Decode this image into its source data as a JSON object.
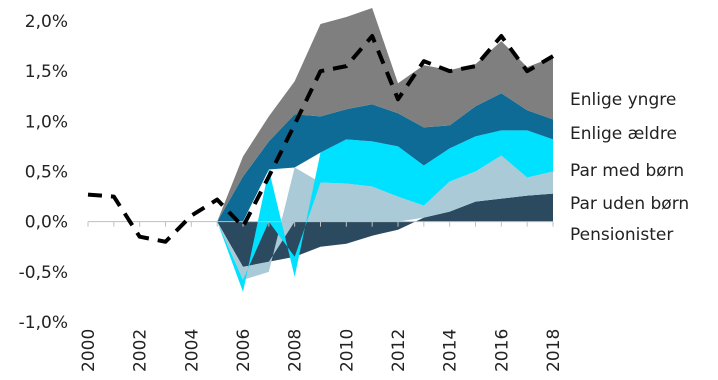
{
  "chart_data": {
    "type": "area",
    "stacked": true,
    "title": "",
    "xlabel": "",
    "ylabel": "",
    "ylim": [
      -1.0,
      2.0
    ],
    "y_ticks": [
      "-1,0%",
      "-0,5%",
      "0,0%",
      "0,5%",
      "1,0%",
      "1,5%",
      "2,0%"
    ],
    "x_ticks": [
      "2000",
      "2002",
      "2004",
      "2006",
      "2008",
      "2010",
      "2012",
      "2014",
      "2016",
      "2018"
    ],
    "grid": false,
    "legend_position": "right",
    "x": [
      2005,
      2006,
      2007,
      2008,
      2009,
      2010,
      2011,
      2012,
      2013,
      2014,
      2015,
      2016,
      2017,
      2018
    ],
    "series": [
      {
        "name": "Pensionister",
        "color": "#2b4a60",
        "values": [
          0.0,
          -0.45,
          -0.4,
          -0.35,
          -0.25,
          -0.22,
          -0.14,
          -0.08,
          0.04,
          0.1,
          0.2,
          0.23,
          0.26,
          0.28
        ]
      },
      {
        "name": "Par uden børn",
        "color": "#a9cad6",
        "values": [
          0.0,
          -0.13,
          -0.1,
          0.54,
          0.39,
          0.38,
          0.35,
          0.25,
          0.12,
          0.3,
          0.3,
          0.43,
          0.18,
          0.22
        ]
      },
      {
        "name": "Par med børn",
        "color": "#00e0ff",
        "values": [
          0.0,
          -0.12,
          0.52,
          -0.2,
          0.3,
          0.44,
          0.45,
          0.5,
          0.4,
          0.33,
          0.35,
          0.25,
          0.47,
          0.32
        ]
      },
      {
        "name": "Enlige ældre",
        "color": "#0e6b96",
        "values": [
          0.0,
          0.45,
          0.28,
          0.53,
          0.36,
          0.3,
          0.37,
          0.33,
          0.38,
          0.23,
          0.3,
          0.37,
          0.2,
          0.2
        ]
      },
      {
        "name": "Enlige yngre",
        "color": "#7f7f7f",
        "values": [
          0.0,
          0.2,
          0.25,
          0.33,
          0.92,
          0.92,
          0.96,
          0.3,
          0.62,
          0.55,
          0.42,
          0.52,
          0.43,
          0.62
        ]
      }
    ],
    "total_line": {
      "style": "dashed",
      "color": "#000000",
      "x": [
        2000,
        2001,
        2002,
        2003,
        2004,
        2005,
        2006,
        2007,
        2008,
        2009,
        2010,
        2011,
        2012,
        2013,
        2014,
        2015,
        2016,
        2017,
        2018
      ],
      "values": [
        0.27,
        0.25,
        -0.15,
        -0.2,
        0.06,
        0.22,
        -0.05,
        0.45,
        0.97,
        1.5,
        1.55,
        1.85,
        1.22,
        1.6,
        1.5,
        1.55,
        1.85,
        1.5,
        1.65
      ]
    }
  }
}
